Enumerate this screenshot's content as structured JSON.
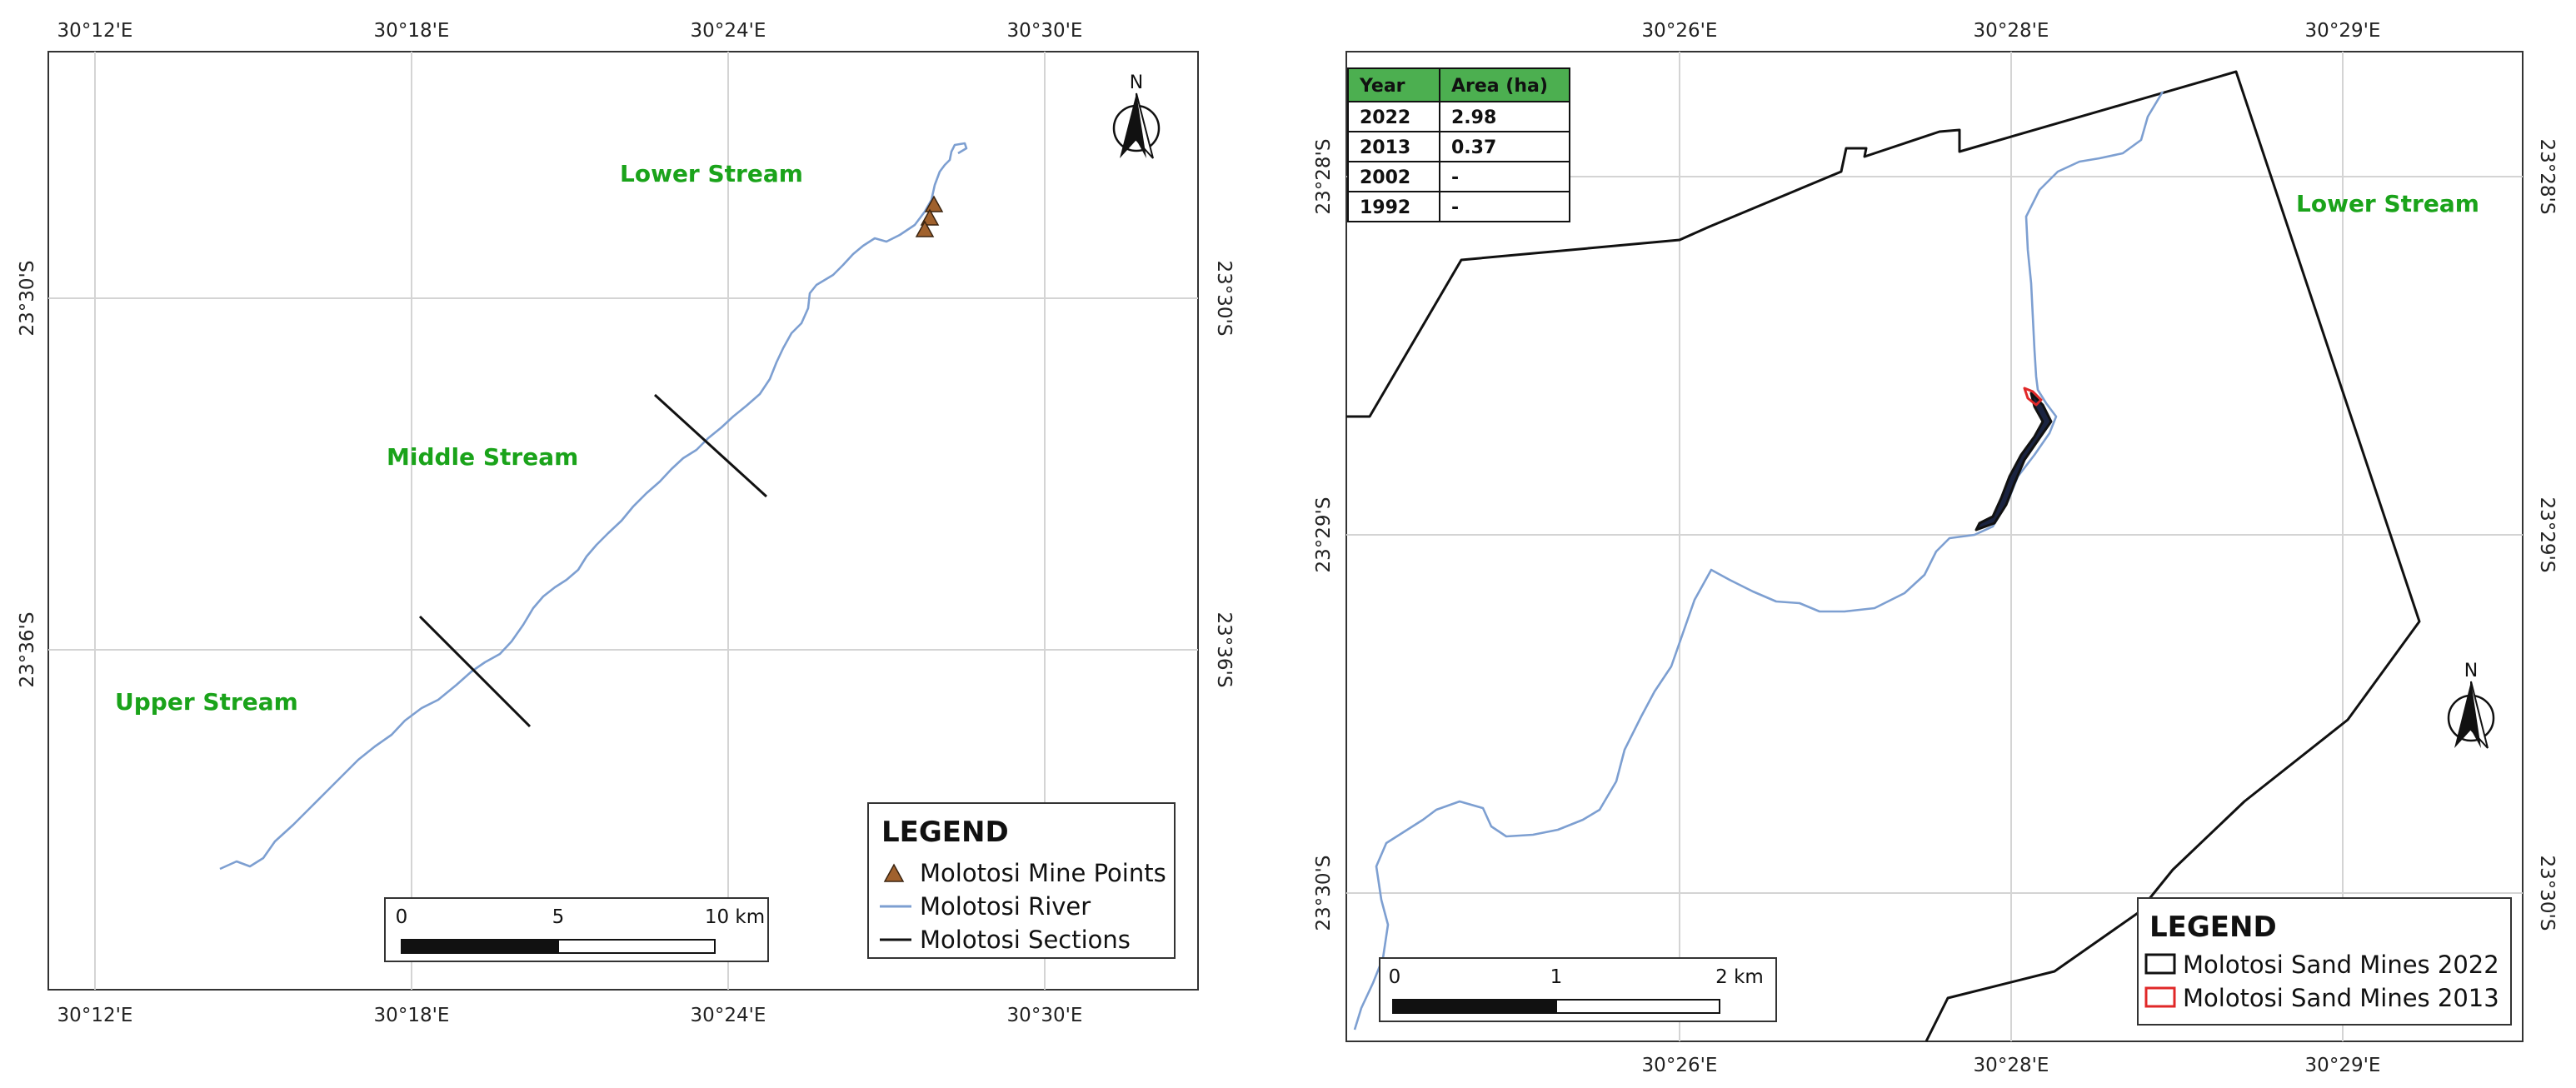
{
  "left_map": {
    "x_ticks": [
      "30°12'E",
      "30°18'E",
      "30°24'E",
      "30°30'E"
    ],
    "y_ticks": [
      "23°30'S",
      "23°36'S"
    ],
    "zones": {
      "lower": "Lower Stream",
      "middle": "Middle Stream",
      "upper": "Upper Stream"
    },
    "north": "N",
    "legend": {
      "title": "LEGEND",
      "items": [
        "Molotosi Mine Points",
        "Molotosi River",
        "Molotosi Sections"
      ]
    },
    "scale": {
      "labels": [
        "0",
        "5",
        "10 km"
      ]
    }
  },
  "right_map": {
    "x_ticks": [
      "30°26'E",
      "30°28'E",
      "30°29'E"
    ],
    "y_ticks": [
      "23°28'S",
      "23°29'S",
      "23°30'S"
    ],
    "zone": "Lower Stream",
    "north": "N",
    "table": {
      "headers": [
        "Year",
        "Area (ha)"
      ],
      "rows": [
        [
          "2022",
          "2.98"
        ],
        [
          "2013",
          "0.37"
        ],
        [
          "2002",
          "-"
        ],
        [
          "1992",
          "-"
        ]
      ]
    },
    "legend": {
      "title": "LEGEND",
      "items": [
        "Molotosi Sand Mines 2022",
        "Molotosi Sand Mines 2013"
      ]
    },
    "scale": {
      "labels": [
        "0",
        "1",
        "2 km"
      ]
    }
  },
  "colors": {
    "river": "#7d9fd1",
    "zone_label": "#1aa31a",
    "mine_point": "#a0612d",
    "sand_mine_2013": "#e02828",
    "table_header": "#4caf50"
  }
}
